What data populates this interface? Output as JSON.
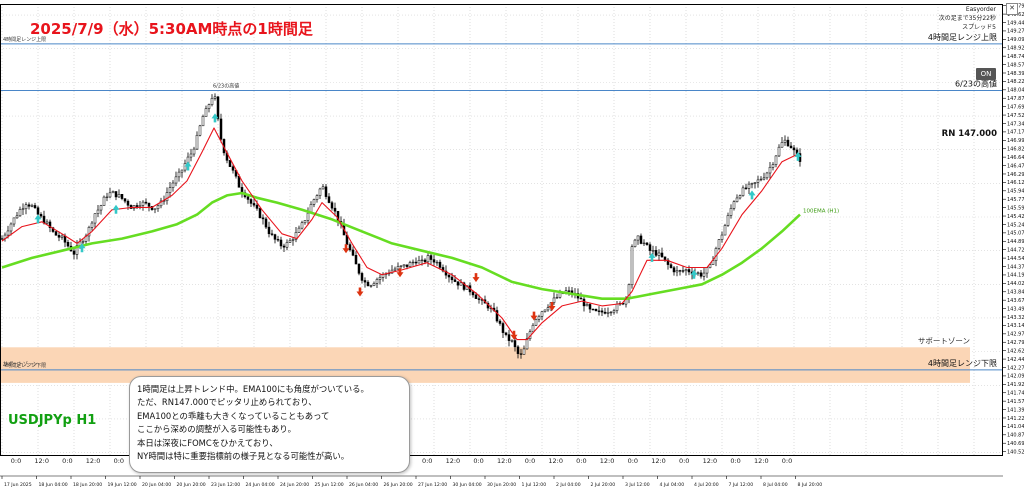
{
  "header": {
    "title": "2025/7/9（水）5:30AM時点の1時間足",
    "symbol": "USDJPYp H1"
  },
  "info_panel": {
    "name": "Easyorder",
    "line1": "次の足まで35分22秒",
    "line2": "スプレッド5",
    "close_label": "✕"
  },
  "on_button": {
    "label": "ON"
  },
  "commentary": {
    "lines": [
      "1時間足は上昇トレンド中。EMA100にも角度がついている。",
      "ただ、RN147.000でピッタリ止められており、",
      "EMA100との乖離も大きくなっていることもあって",
      "ここから深めの調整が入る可能性もあり。",
      "本日は深夜にFOMCをひかえており、",
      "NY時間は特に重要指標前の様子見となる可能性が高い。"
    ]
  },
  "colors": {
    "title": "#e8141c",
    "symbol": "#12a012",
    "candle": "#000000",
    "ema_fast": "#e8141c",
    "ema100": "#66dd22",
    "level_line": "#4a86c8",
    "support_zone": "#fbd6b6",
    "arrow_buy": "#33c8c8",
    "arrow_sell": "#dd3311"
  },
  "chart_data": {
    "type": "candlestick",
    "price_scale": {
      "min": 140.45,
      "max": 149.83,
      "tick_step": 0.175
    },
    "x_tick_labels": [
      "17 Jun 2025",
      "18 Jun 04:00",
      "18 Jun 20:00",
      "19 Jun 12:00",
      "20 Jun 04:00",
      "20 Jun 20:00",
      "23 Jun 12:00",
      "24 Jun 04:00",
      "24 Jun 20:00",
      "25 Jun 12:00",
      "26 Jun 04:00",
      "26 Jun 20:00",
      "27 Jun 12:00",
      "30 Jun 04:00",
      "30 Jun 20:00",
      "1 Jul 12:00",
      "2 Jul 04:00",
      "2 Jul 20:00",
      "3 Jul 12:00",
      "4 Jul 04:00",
      "4 Jul 20:00",
      "7 Jul 12:00",
      "8 Jul 04:00",
      "8 Jul 20:00"
    ],
    "time_row_labels": [
      "0:0",
      "12:0",
      "0:0",
      "12:0",
      "0:0",
      "12:0",
      "0:0",
      "12:0",
      "0:0",
      "12:0",
      "0:0",
      "12:0",
      "0:0",
      "12:0",
      "0:0",
      "12:0",
      "0:0",
      "12:0",
      "0:0",
      "12:0",
      "0:0",
      "12:0",
      "0:0",
      "12:0",
      "0:0",
      "12:0",
      "0:0",
      "12:0",
      "0:0",
      "12:0",
      "0:0"
    ],
    "horizontal_levels": [
      {
        "label": "4時間足レンジ上限",
        "left_label": "4時間足レンジ上限",
        "price": 149.0
      },
      {
        "label": "6/23の高値",
        "left_label": "6/23の高値",
        "price": 148.03
      },
      {
        "label": "RN 147.000",
        "price": 147.0
      },
      {
        "label": "4時間足レンジ下限",
        "left_label": "4時間足レンジ下限",
        "price": 142.22
      }
    ],
    "support_zone": {
      "label": "サポートゾーン",
      "left_label": "サポートゾーン",
      "from": 141.95,
      "to": 142.69
    },
    "ema100_label": "100EMA (H1)",
    "price_path": [
      [
        0,
        144.95
      ],
      [
        10,
        145.3
      ],
      [
        18,
        145.55
      ],
      [
        24,
        145.7
      ],
      [
        30,
        145.62
      ],
      [
        36,
        145.45
      ],
      [
        44,
        145.28
      ],
      [
        52,
        145.05
      ],
      [
        60,
        144.95
      ],
      [
        66,
        144.8
      ],
      [
        72,
        144.65
      ],
      [
        80,
        144.92
      ],
      [
        86,
        145.1
      ],
      [
        92,
        145.45
      ],
      [
        98,
        145.6
      ],
      [
        104,
        145.85
      ],
      [
        110,
        145.9
      ],
      [
        116,
        145.85
      ],
      [
        122,
        145.75
      ],
      [
        130,
        145.6
      ],
      [
        138,
        145.7
      ],
      [
        146,
        145.65
      ],
      [
        152,
        145.58
      ],
      [
        160,
        145.7
      ],
      [
        166,
        145.95
      ],
      [
        172,
        146.15
      ],
      [
        178,
        146.3
      ],
      [
        184,
        146.55
      ],
      [
        190,
        146.75
      ],
      [
        196,
        147.1
      ],
      [
        200,
        147.45
      ],
      [
        204,
        147.6
      ],
      [
        208,
        147.8
      ],
      [
        212,
        148.0
      ],
      [
        216,
        147.4
      ],
      [
        220,
        146.9
      ],
      [
        226,
        146.55
      ],
      [
        232,
        146.3
      ],
      [
        238,
        146.0
      ],
      [
        244,
        145.85
      ],
      [
        250,
        145.65
      ],
      [
        256,
        145.5
      ],
      [
        262,
        145.3
      ],
      [
        268,
        145.05
      ],
      [
        274,
        144.9
      ],
      [
        280,
        144.8
      ],
      [
        286,
        144.85
      ],
      [
        292,
        145.0
      ],
      [
        298,
        145.15
      ],
      [
        304,
        145.4
      ],
      [
        310,
        145.7
      ],
      [
        316,
        145.9
      ],
      [
        320,
        146.05
      ],
      [
        326,
        145.8
      ],
      [
        332,
        145.55
      ],
      [
        338,
        145.25
      ],
      [
        344,
        144.9
      ],
      [
        350,
        144.6
      ],
      [
        356,
        144.3
      ],
      [
        362,
        144.05
      ],
      [
        368,
        144.0
      ],
      [
        374,
        144.1
      ],
      [
        382,
        144.2
      ],
      [
        390,
        144.3
      ],
      [
        398,
        144.35
      ],
      [
        406,
        144.4
      ],
      [
        414,
        144.5
      ],
      [
        420,
        144.45
      ],
      [
        426,
        144.55
      ],
      [
        432,
        144.5
      ],
      [
        438,
        144.4
      ],
      [
        446,
        144.2
      ],
      [
        454,
        144.05
      ],
      [
        462,
        143.95
      ],
      [
        470,
        143.85
      ],
      [
        478,
        143.65
      ],
      [
        486,
        143.55
      ],
      [
        492,
        143.4
      ],
      [
        498,
        143.15
      ],
      [
        504,
        142.9
      ],
      [
        510,
        142.8
      ],
      [
        516,
        142.55
      ],
      [
        520,
        142.5
      ],
      [
        526,
        142.9
      ],
      [
        532,
        143.25
      ],
      [
        540,
        143.45
      ],
      [
        548,
        143.6
      ],
      [
        556,
        143.75
      ],
      [
        564,
        143.85
      ],
      [
        572,
        143.8
      ],
      [
        580,
        143.65
      ],
      [
        588,
        143.45
      ],
      [
        596,
        143.4
      ],
      [
        604,
        143.45
      ],
      [
        612,
        143.5
      ],
      [
        620,
        143.6
      ],
      [
        626,
        143.8
      ],
      [
        630,
        144.8
      ],
      [
        636,
        144.95
      ],
      [
        642,
        144.85
      ],
      [
        648,
        144.7
      ],
      [
        654,
        144.65
      ],
      [
        660,
        144.55
      ],
      [
        668,
        144.35
      ],
      [
        676,
        144.25
      ],
      [
        684,
        144.3
      ],
      [
        692,
        144.25
      ],
      [
        700,
        144.2
      ],
      [
        708,
        144.35
      ],
      [
        714,
        144.75
      ],
      [
        720,
        145.05
      ],
      [
        726,
        145.4
      ],
      [
        732,
        145.75
      ],
      [
        738,
        145.9
      ],
      [
        744,
        146.0
      ],
      [
        750,
        146.05
      ],
      [
        756,
        146.15
      ],
      [
        764,
        146.3
      ],
      [
        770,
        146.5
      ],
      [
        776,
        146.8
      ],
      [
        782,
        147.0
      ],
      [
        788,
        146.9
      ],
      [
        794,
        146.7
      ],
      [
        798,
        146.6
      ]
    ],
    "ema_fast_path": [
      [
        0,
        144.9
      ],
      [
        20,
        145.2
      ],
      [
        40,
        145.3
      ],
      [
        60,
        145.05
      ],
      [
        75,
        144.85
      ],
      [
        90,
        145.1
      ],
      [
        110,
        145.55
      ],
      [
        130,
        145.6
      ],
      [
        150,
        145.6
      ],
      [
        170,
        145.85
      ],
      [
        185,
        146.15
      ],
      [
        200,
        146.75
      ],
      [
        212,
        147.25
      ],
      [
        222,
        146.85
      ],
      [
        240,
        146.15
      ],
      [
        260,
        145.55
      ],
      [
        280,
        145.05
      ],
      [
        295,
        144.95
      ],
      [
        310,
        145.35
      ],
      [
        320,
        145.7
      ],
      [
        335,
        145.4
      ],
      [
        350,
        144.85
      ],
      [
        365,
        144.35
      ],
      [
        380,
        144.2
      ],
      [
        400,
        144.3
      ],
      [
        425,
        144.45
      ],
      [
        450,
        144.2
      ],
      [
        475,
        143.8
      ],
      [
        500,
        143.3
      ],
      [
        515,
        142.85
      ],
      [
        525,
        142.85
      ],
      [
        540,
        143.2
      ],
      [
        560,
        143.55
      ],
      [
        580,
        143.65
      ],
      [
        600,
        143.55
      ],
      [
        620,
        143.6
      ],
      [
        630,
        143.85
      ],
      [
        645,
        144.5
      ],
      [
        665,
        144.5
      ],
      [
        685,
        144.35
      ],
      [
        705,
        144.35
      ],
      [
        720,
        144.75
      ],
      [
        740,
        145.45
      ],
      [
        760,
        145.95
      ],
      [
        780,
        146.55
      ],
      [
        795,
        146.7
      ]
    ],
    "ema100_path": [
      [
        0,
        144.35
      ],
      [
        30,
        144.55
      ],
      [
        60,
        144.7
      ],
      [
        90,
        144.85
      ],
      [
        120,
        144.95
      ],
      [
        150,
        145.1
      ],
      [
        175,
        145.25
      ],
      [
        195,
        145.45
      ],
      [
        210,
        145.7
      ],
      [
        225,
        145.85
      ],
      [
        240,
        145.9
      ],
      [
        255,
        145.8
      ],
      [
        275,
        145.7
      ],
      [
        300,
        145.55
      ],
      [
        330,
        145.35
      ],
      [
        360,
        145.1
      ],
      [
        390,
        144.85
      ],
      [
        420,
        144.7
      ],
      [
        450,
        144.55
      ],
      [
        480,
        144.35
      ],
      [
        510,
        144.05
      ],
      [
        540,
        143.9
      ],
      [
        570,
        143.8
      ],
      [
        600,
        143.7
      ],
      [
        625,
        143.7
      ],
      [
        650,
        143.8
      ],
      [
        675,
        143.9
      ],
      [
        700,
        144.0
      ],
      [
        720,
        144.2
      ],
      [
        740,
        144.45
      ],
      [
        760,
        144.75
      ],
      [
        780,
        145.1
      ],
      [
        798,
        145.45
      ]
    ],
    "arrows": [
      {
        "bar": 36,
        "price": 145.35,
        "dir": "buy"
      },
      {
        "bar": 80,
        "price": 144.75,
        "dir": "buy"
      },
      {
        "bar": 114,
        "price": 145.55,
        "dir": "buy"
      },
      {
        "bar": 186,
        "price": 146.45,
        "dir": "buy"
      },
      {
        "bar": 213,
        "price": 147.45,
        "dir": "buy"
      },
      {
        "bar": 344,
        "price": 144.75,
        "dir": "sell"
      },
      {
        "bar": 358,
        "price": 143.85,
        "dir": "sell"
      },
      {
        "bar": 398,
        "price": 144.25,
        "dir": "sell"
      },
      {
        "bar": 474,
        "price": 144.15,
        "dir": "sell"
      },
      {
        "bar": 512,
        "price": 142.95,
        "dir": "sell"
      },
      {
        "bar": 532,
        "price": 143.35,
        "dir": "sell"
      },
      {
        "bar": 550,
        "price": 143.55,
        "dir": "sell"
      },
      {
        "bar": 650,
        "price": 144.55,
        "dir": "buy"
      },
      {
        "bar": 692,
        "price": 144.2,
        "dir": "buy"
      },
      {
        "bar": 750,
        "price": 145.85,
        "dir": "buy"
      },
      {
        "bar": 796,
        "price": 146.65,
        "dir": "buy"
      }
    ]
  }
}
